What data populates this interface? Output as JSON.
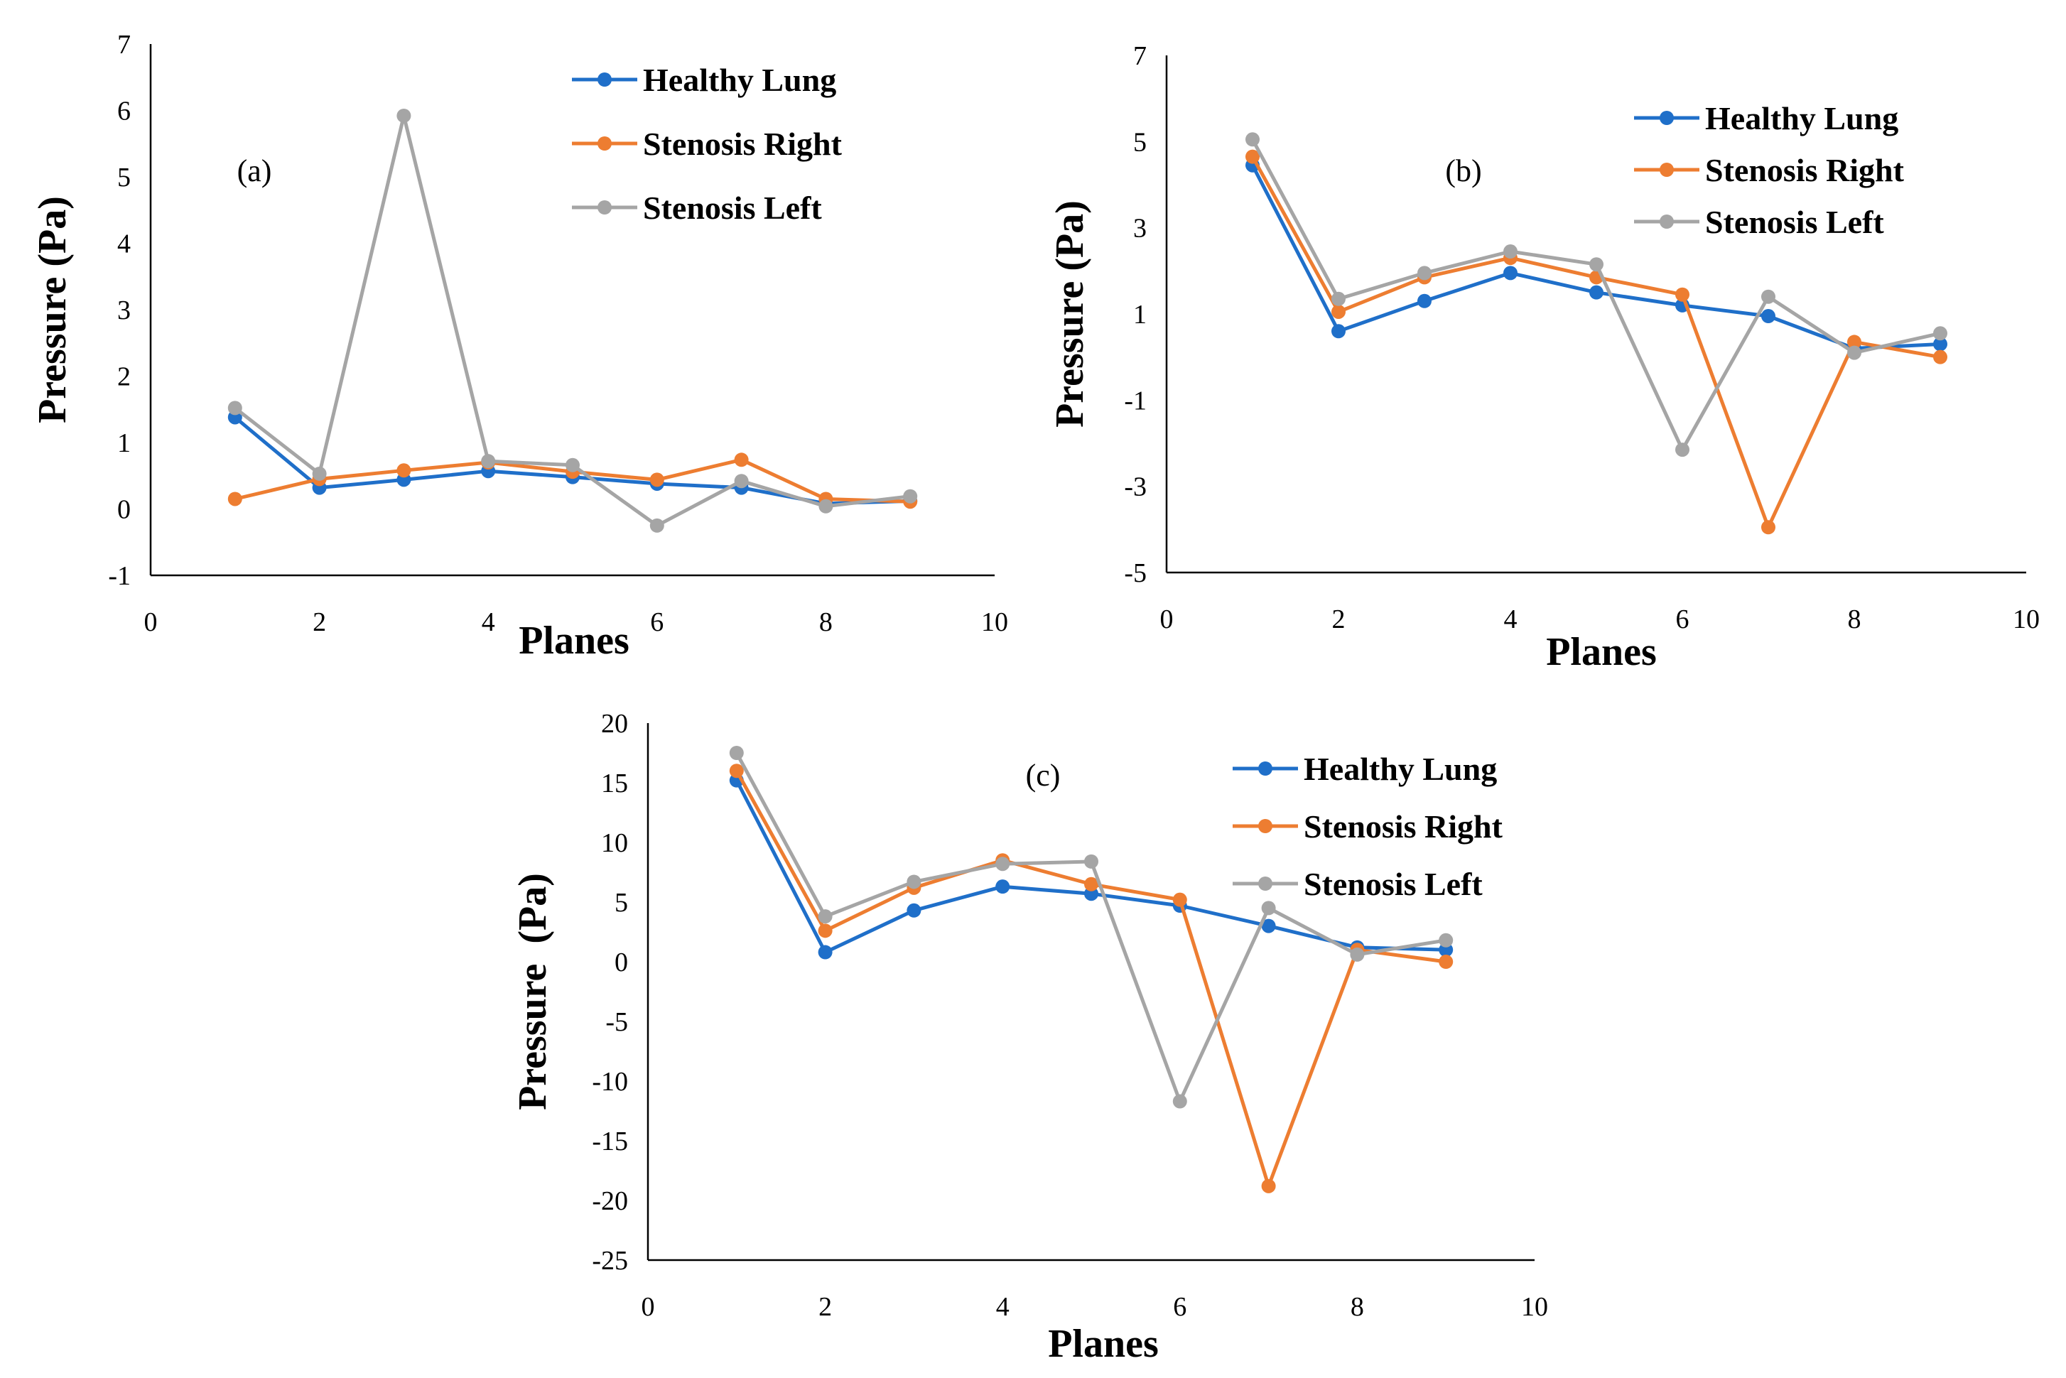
{
  "chart_data": [
    {
      "type": "line",
      "panel_label": "(a)",
      "xlabel": "Planes",
      "ylabel": "Pressure (Pa)",
      "xlim": [
        0,
        10
      ],
      "ylim": [
        -1,
        7
      ],
      "xticks": [
        0,
        2,
        4,
        6,
        8,
        10
      ],
      "yticks": [
        -1,
        0,
        1,
        2,
        3,
        4,
        5,
        6,
        7
      ],
      "x": [
        1,
        2,
        3,
        4,
        5,
        6,
        7,
        8,
        9
      ],
      "series": [
        {
          "name": "Healthy Lung",
          "color": "#1f6fc9",
          "values": [
            1.38,
            0.32,
            0.44,
            0.57,
            0.48,
            0.38,
            0.32,
            0.08,
            0.12
          ]
        },
        {
          "name": "Stenosis Right",
          "color": "#ed7d31",
          "values": [
            0.15,
            0.45,
            0.58,
            0.7,
            0.56,
            0.44,
            0.74,
            0.15,
            0.11
          ]
        },
        {
          "name": "Stenosis Left",
          "color": "#a5a5a5",
          "values": [
            1.52,
            0.53,
            5.92,
            0.72,
            0.66,
            -0.25,
            0.42,
            0.04,
            0.19
          ]
        }
      ]
    },
    {
      "type": "line",
      "panel_label": "(b)",
      "xlabel": "Planes",
      "ylabel": "Pressure (Pa)",
      "xlim": [
        0,
        10
      ],
      "ylim": [
        -5,
        7
      ],
      "xticks": [
        0,
        2,
        4,
        6,
        8,
        10
      ],
      "yticks": [
        -5,
        -3,
        -1,
        1,
        3,
        5,
        7
      ],
      "x": [
        1,
        2,
        3,
        4,
        5,
        6,
        7,
        8,
        9
      ],
      "series": [
        {
          "name": "Healthy Lung",
          "color": "#1f6fc9",
          "values": [
            4.45,
            0.6,
            1.3,
            1.95,
            1.5,
            1.2,
            0.95,
            0.2,
            0.3
          ]
        },
        {
          "name": "Stenosis Right",
          "color": "#ed7d31",
          "values": [
            4.65,
            1.05,
            1.85,
            2.3,
            1.85,
            1.45,
            -3.95,
            0.35,
            0.0
          ]
        },
        {
          "name": "Stenosis Left",
          "color": "#a5a5a5",
          "values": [
            5.05,
            1.35,
            1.95,
            2.45,
            2.15,
            -2.15,
            1.4,
            0.1,
            0.55
          ]
        }
      ]
    },
    {
      "type": "line",
      "panel_label": "(c)",
      "xlabel": "Planes",
      "ylabel": "Pressure  (Pa)",
      "xlim": [
        0,
        10
      ],
      "ylim": [
        -25,
        20
      ],
      "xticks": [
        0,
        2,
        4,
        6,
        8,
        10
      ],
      "yticks": [
        -25,
        -20,
        -15,
        -10,
        -5,
        0,
        5,
        10,
        15,
        20
      ],
      "x": [
        1,
        2,
        3,
        4,
        5,
        6,
        7,
        8,
        9
      ],
      "series": [
        {
          "name": "Healthy Lung",
          "color": "#1f6fc9",
          "values": [
            15.2,
            0.8,
            4.3,
            6.3,
            5.7,
            4.7,
            3.0,
            1.2,
            1.0
          ]
        },
        {
          "name": "Stenosis Right",
          "color": "#ed7d31",
          "values": [
            16.0,
            2.6,
            6.2,
            8.5,
            6.5,
            5.2,
            -18.8,
            1.0,
            0.0
          ]
        },
        {
          "name": "Stenosis Left",
          "color": "#a5a5a5",
          "values": [
            17.5,
            3.8,
            6.7,
            8.2,
            8.4,
            -11.7,
            4.5,
            0.6,
            1.8
          ]
        }
      ]
    }
  ]
}
